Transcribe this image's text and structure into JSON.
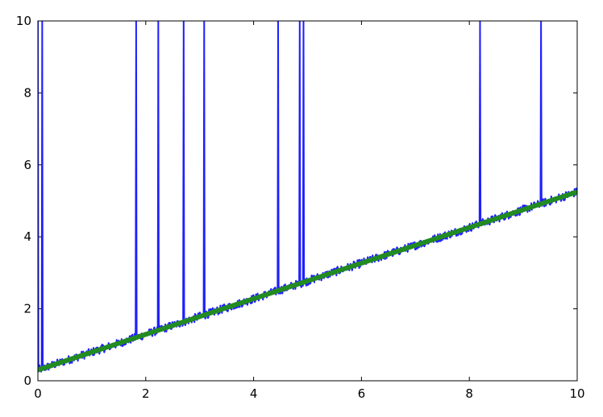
{
  "chart_data": {
    "type": "line",
    "title": "",
    "xlabel": "",
    "ylabel": "",
    "xlim": [
      0,
      10
    ],
    "ylim": [
      0,
      10
    ],
    "grid": false,
    "legend": "none",
    "xticks": [
      "0",
      "2",
      "4",
      "6",
      "8",
      "10"
    ],
    "yticks": [
      "0",
      "2",
      "4",
      "6",
      "8",
      "10"
    ],
    "series": [
      {
        "role": "noisy data",
        "color": "#1f1fff",
        "x_range": [
          0,
          10
        ],
        "baseline": [
          0.3,
          0.495
        ],
        "noise_amplitude": 0.12,
        "outlier_x": [
          0.0,
          0.08,
          1.82,
          2.23,
          2.7,
          3.08,
          4.45,
          4.85,
          4.92,
          8.2,
          9.33
        ],
        "outlier_y": 10
      },
      {
        "role": "fitted line",
        "color": "#228B22",
        "x": [
          0,
          10
        ],
        "y": [
          0.3,
          5.25
        ]
      }
    ]
  }
}
